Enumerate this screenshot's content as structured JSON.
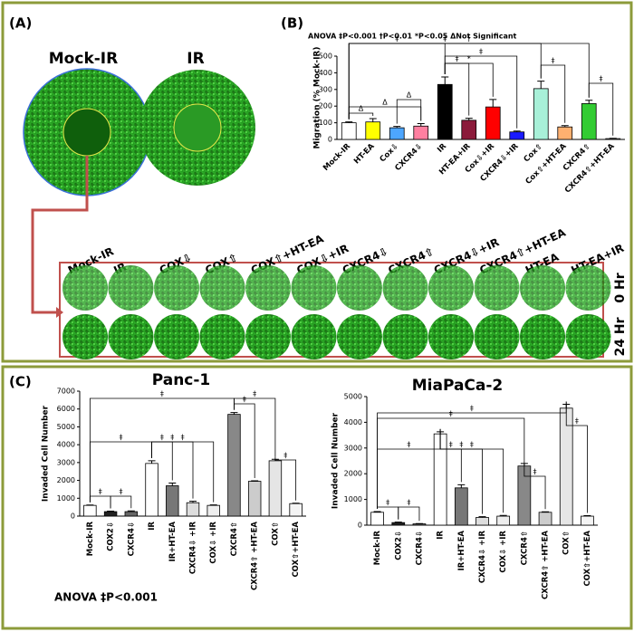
{
  "panel_a": {
    "label": "(A)",
    "images": [
      "Mock-IR",
      "IR"
    ],
    "plate_labels": [
      "Mock-IR",
      "IR",
      "COX⇩",
      "COX⇧",
      "COX⇧+HT-EA",
      "COX⇩+IR",
      "CXCR4⇩",
      "CXCR4⇧",
      "CXCR4⇩+IR",
      "CXCR4⇧+HT-EA",
      "HT-EA",
      "HT-EA+IR"
    ],
    "rows": [
      "0 Hr",
      "24 Hr"
    ]
  },
  "panel_b": {
    "label": "(B)"
  },
  "panel_c": {
    "label": "(C)",
    "annotation": "ANOVA ‡P<0.001"
  },
  "chart_data": [
    {
      "type": "bar",
      "annotation": "ANOVA  ‡P<0.001  †P<0.01  *P<0.05  ΔNot Significant",
      "y_label": "Migration (% Mock-IR)",
      "categories": [
        "Mock-IR",
        "HT-EA",
        "Cox⇩",
        "CXCR4⇩",
        "IR",
        "HT-EA+IR",
        "Cox⇩+IR",
        "CXCR4⇩+IR",
        "Cox⇧",
        "Cox⇧+HT-EA",
        "CXCR4⇧",
        "CXCR4⇧+HT-EA"
      ],
      "values": [
        100,
        105,
        70,
        80,
        330,
        115,
        195,
        45,
        305,
        75,
        215,
        5
      ],
      "errors": [
        5,
        20,
        8,
        15,
        45,
        12,
        45,
        5,
        45,
        8,
        20,
        2
      ],
      "colors": [
        "#ffffff",
        "#ffff00",
        "#4da6ff",
        "#ff7fa0",
        "#000000",
        "#8b1a3a",
        "#ff0000",
        "#1a1aff",
        "#a8f0d8",
        "#ffb070",
        "#33cc33",
        "#ffffff"
      ],
      "symbols": [
        "‡",
        "†",
        "*",
        "Δ"
      ],
      "ylim": [
        0,
        500
      ],
      "yticks": [
        0,
        100,
        200,
        300,
        400,
        500
      ]
    },
    {
      "type": "bar",
      "title": "Panc-1",
      "y_label": "Invaded Cell Number",
      "categories": [
        "Mock-IR",
        "COX2⇩",
        "CXCR4⇩",
        "IR",
        "IR+HT-EA",
        "CXCR4⇩ +IR",
        "COX⇩ +IR",
        "CXCR4⇧",
        "CXCR4⇧ +HT-EA",
        "COX⇧",
        "COX⇧+HT-EA"
      ],
      "values": [
        600,
        250,
        250,
        2950,
        1700,
        750,
        600,
        5700,
        1950,
        3100,
        700
      ],
      "errors": [
        20,
        30,
        40,
        150,
        150,
        80,
        30,
        100,
        30,
        80,
        20
      ],
      "colors": [
        "#ffffff",
        "#222222",
        "#666666",
        "#ffffff",
        "#777777",
        "#dddddd",
        "#eeeeee",
        "#888888",
        "#cccccc",
        "#e5e5e5",
        "#f4f4f4"
      ],
      "symbols": [
        "‡"
      ],
      "ylim": [
        0,
        7000
      ],
      "yticks": [
        0,
        1000,
        2000,
        3000,
        4000,
        5000,
        6000,
        7000
      ]
    },
    {
      "type": "bar",
      "title": "MiaPaCa-2",
      "y_label": "Invaded Cell Number",
      "categories": [
        "Mock-IR",
        "COX2⇩",
        "CXCR4⇩",
        "IR",
        "IR+HT-EA",
        "CXCR4⇩ +IR",
        "COX⇩ +IR",
        "CXCR4⇧",
        "CXCR4⇧ +HT-EA",
        "COX⇧",
        "COX⇧+HT-EA"
      ],
      "values": [
        500,
        100,
        50,
        3550,
        1450,
        300,
        350,
        2300,
        500,
        4550,
        350
      ],
      "errors": [
        30,
        20,
        10,
        80,
        120,
        30,
        30,
        100,
        20,
        150,
        20
      ],
      "colors": [
        "#ffffff",
        "#222222",
        "#666666",
        "#ffffff",
        "#777777",
        "#dddddd",
        "#eeeeee",
        "#888888",
        "#cccccc",
        "#e5e5e5",
        "#f4f4f4"
      ],
      "symbols": [
        "‡"
      ],
      "ylim": [
        0,
        5000
      ],
      "yticks": [
        0,
        1000,
        2000,
        3000,
        4000,
        5000
      ]
    }
  ]
}
